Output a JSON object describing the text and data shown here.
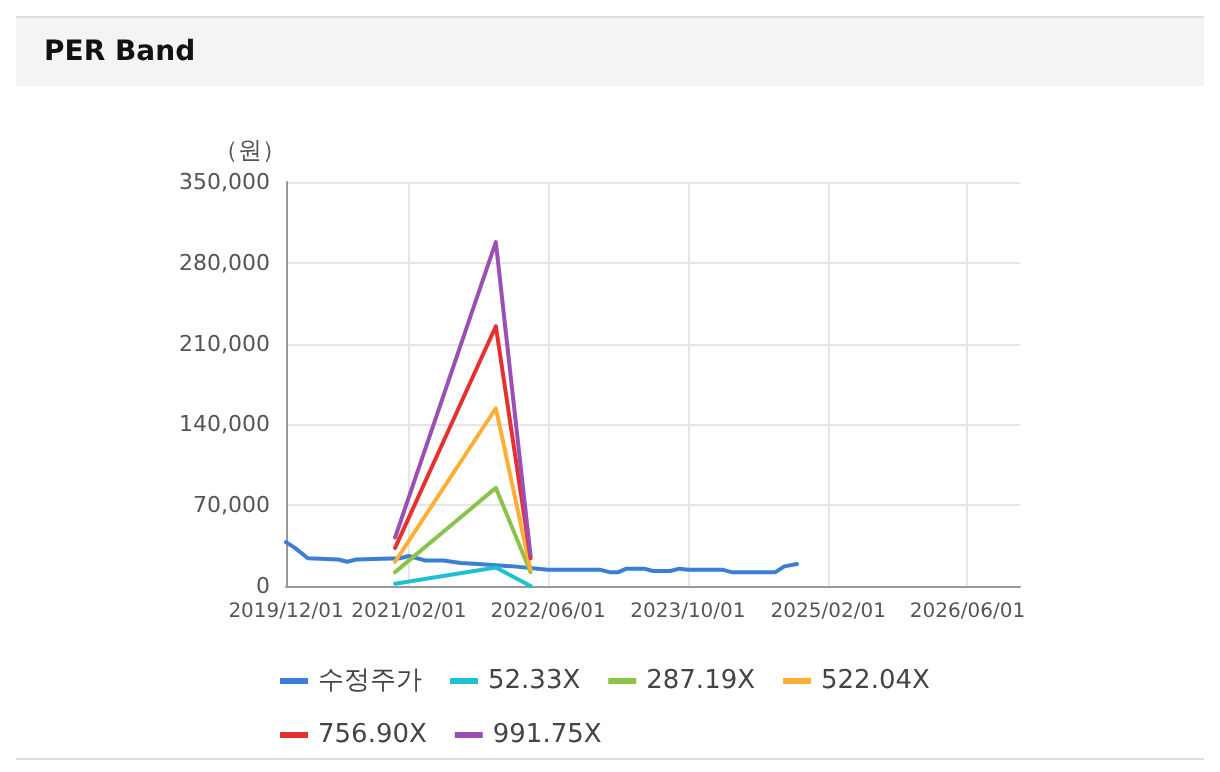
{
  "chart_data": {
    "type": "line",
    "title": "PER Band",
    "ylabel": "（원）",
    "xlim": [
      "2019-12-01",
      "2026-12-01"
    ],
    "xticks": [
      {
        "value": "2019-12-01",
        "label": "2019/12/01"
      },
      {
        "value": "2021-02-01",
        "label": "2021/02/01"
      },
      {
        "value": "2022-06-01",
        "label": "2022/06/01"
      },
      {
        "value": "2023-10-01",
        "label": "2023/10/01"
      },
      {
        "value": "2025-02-01",
        "label": "2025/02/01"
      },
      {
        "value": "2026-06-01",
        "label": "2026/06/01"
      }
    ],
    "ylim": [
      0,
      350000
    ],
    "yticks": [
      {
        "value": 0,
        "label": "0"
      },
      {
        "value": 70000,
        "label": "70,000"
      },
      {
        "value": 140000,
        "label": "140,000"
      },
      {
        "value": 210000,
        "label": "210,000"
      },
      {
        "value": 280000,
        "label": "280,000"
      },
      {
        "value": 350000,
        "label": "350,000"
      }
    ],
    "grid": true,
    "legend": "bottom",
    "marker": "none",
    "line_style": "solid",
    "series": [
      {
        "name": "수정주가",
        "color": "#3a7fd5",
        "x": [
          "2019-12-01",
          "2020-01-01",
          "2020-02-15",
          "2020-06-01",
          "2020-07-01",
          "2020-08-01",
          "2021-01-01",
          "2021-02-01",
          "2021-04-01",
          "2021-06-01",
          "2021-08-01",
          "2021-10-01",
          "2021-12-01",
          "2022-02-01",
          "2022-06-01",
          "2022-12-01",
          "2023-01-01",
          "2023-02-01",
          "2023-03-01",
          "2023-05-01",
          "2023-06-01",
          "2023-08-01",
          "2023-09-01",
          "2023-10-01",
          "2024-02-01",
          "2024-03-01",
          "2024-08-01",
          "2024-09-01",
          "2024-10-15"
        ],
        "values": [
          38000,
          33000,
          24000,
          23000,
          21000,
          23000,
          24000,
          26000,
          22000,
          22000,
          20000,
          19000,
          18000,
          17000,
          14000,
          14000,
          12000,
          12000,
          15000,
          15000,
          13000,
          13000,
          15000,
          14000,
          14000,
          12000,
          12000,
          17000,
          19000
        ]
      },
      {
        "name": "52.33X",
        "color": "#1fbfd6",
        "x": [
          "2020-12-15",
          "2021-12-01",
          "2022-04-01"
        ],
        "values": [
          2000,
          16000,
          0
        ]
      },
      {
        "name": "287.19X",
        "color": "#8bc34a",
        "x": [
          "2020-12-15",
          "2021-12-01",
          "2022-04-01"
        ],
        "values": [
          12000,
          85000,
          12000
        ]
      },
      {
        "name": "522.04X",
        "color": "#ffae35",
        "x": [
          "2020-12-15",
          "2021-12-01",
          "2022-04-01"
        ],
        "values": [
          21000,
          154000,
          14000
        ]
      },
      {
        "name": "756.90X",
        "color": "#e53030",
        "x": [
          "2020-12-15",
          "2021-12-01",
          "2022-04-01"
        ],
        "values": [
          33000,
          225000,
          24000
        ]
      },
      {
        "name": "991.75X",
        "color": "#9b4fb4",
        "x": [
          "2020-12-15",
          "2021-12-01",
          "2022-04-01"
        ],
        "values": [
          42000,
          298000,
          26000
        ]
      }
    ]
  }
}
